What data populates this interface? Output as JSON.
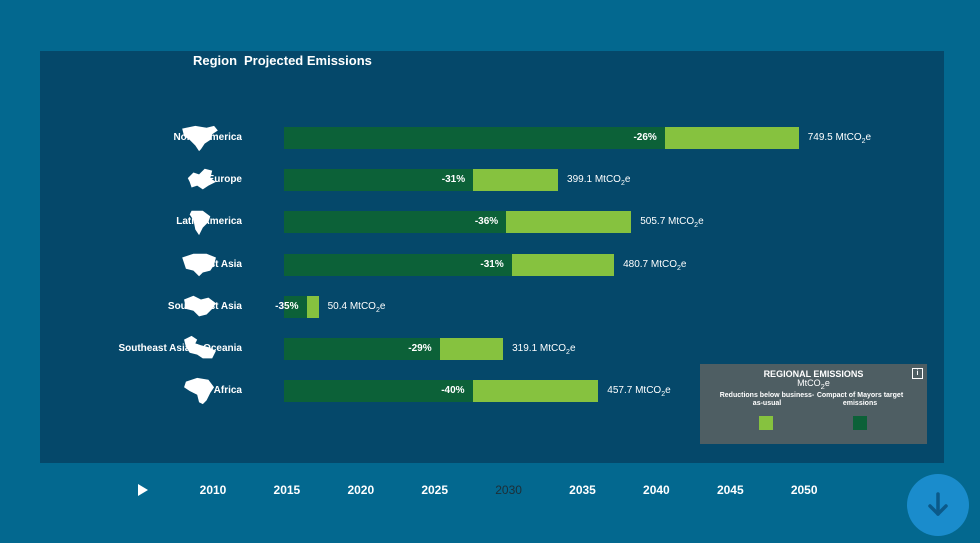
{
  "chart_data": {
    "type": "bar",
    "stacked": true,
    "columns": [
      "Region",
      "Projected Emissions"
    ],
    "unit": "MtCO2e",
    "categories": [
      "North America",
      "Europe",
      "Latin America",
      "East Asia",
      "Southwest Asia",
      "Southeast Asia & Oceania",
      "Africa"
    ],
    "series": [
      {
        "name": "Compact of Mayors target emissions",
        "color": "#0c6138",
        "values": [
          554.6,
          275.4,
          323.6,
          331.7,
          32.8,
          226.6,
          274.6
        ]
      },
      {
        "name": "Reductions below business-as-usual",
        "color": "#86c23f",
        "values": [
          195.0,
          123.7,
          182.1,
          149.0,
          17.6,
          92.5,
          183.1
        ]
      }
    ],
    "totals": [
      749.5,
      399.1,
      505.7,
      480.7,
      50.4,
      319.1,
      457.7
    ],
    "percent_labels": [
      "-26%",
      "-31%",
      "-36%",
      "-31%",
      "-35%",
      "-29%",
      "-40%"
    ],
    "total_labels": [
      "749.5 MtCO",
      "399.1 MtCO",
      "505.7 MtCO",
      "480.7 MtCO",
      "50.4 MtCO",
      "319.1 MtCO",
      "457.7 MtCO"
    ],
    "xlim": [
      0,
      750
    ],
    "legend": {
      "position": "bottom-right",
      "title": "REGIONAL EMISSIONS",
      "unit": "MtCO2e",
      "info": "i",
      "reductions_label": "Reductions below business-as-usual",
      "target_label": "Compact of Mayors target emissions"
    }
  },
  "timeline": {
    "years": [
      "2010",
      "2015",
      "2020",
      "2025",
      "2030",
      "2035",
      "2040",
      "2045",
      "2050"
    ],
    "selected": "2030"
  },
  "icons": {
    "play": "play-icon",
    "down": "arrow-down-icon"
  }
}
